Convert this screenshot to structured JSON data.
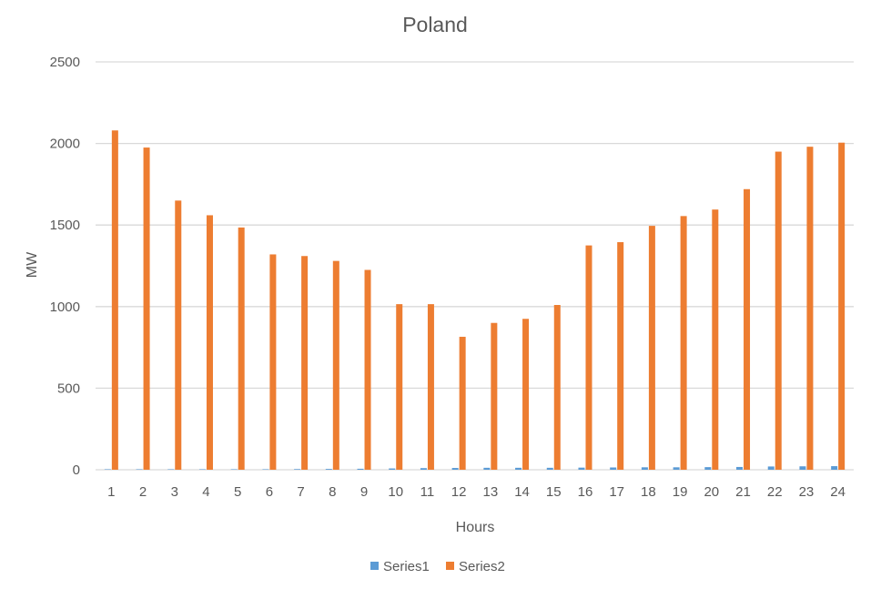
{
  "chart_data": {
    "type": "bar",
    "title": "Poland",
    "xlabel": "Hours",
    "ylabel": "MW",
    "ylim": [
      0,
      2500
    ],
    "yticks": [
      0,
      500,
      1000,
      1500,
      2000,
      2500
    ],
    "grid": true,
    "legend_position": "bottom",
    "categories": [
      "1",
      "2",
      "3",
      "4",
      "5",
      "6",
      "7",
      "8",
      "9",
      "10",
      "11",
      "12",
      "13",
      "14",
      "15",
      "16",
      "17",
      "18",
      "19",
      "20",
      "21",
      "22",
      "23",
      "24"
    ],
    "series": [
      {
        "name": "Series1",
        "color": "#5B9BD5",
        "values": [
          3,
          3,
          3,
          3,
          3,
          3,
          4,
          5,
          6,
          8,
          10,
          11,
          12,
          12,
          12,
          13,
          14,
          15,
          15,
          16,
          17,
          20,
          21,
          22
        ]
      },
      {
        "name": "Series2",
        "color": "#ED7D31",
        "values": [
          2080,
          1975,
          1650,
          1560,
          1485,
          1320,
          1310,
          1280,
          1225,
          1015,
          1015,
          815,
          900,
          925,
          1010,
          1375,
          1395,
          1495,
          1555,
          1595,
          1720,
          1950,
          1980,
          2005
        ]
      }
    ]
  }
}
